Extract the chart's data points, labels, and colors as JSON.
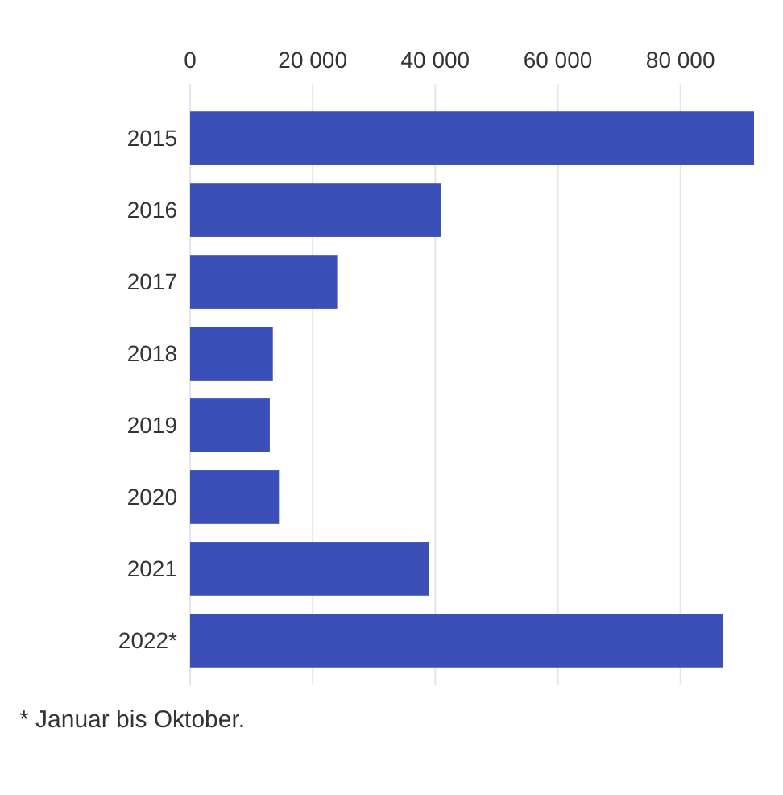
{
  "chart_data": {
    "type": "bar",
    "orientation": "horizontal",
    "categories": [
      "2015",
      "2016",
      "2017",
      "2018",
      "2019",
      "2020",
      "2021",
      "2022*"
    ],
    "values": [
      92000,
      41000,
      24000,
      13500,
      13000,
      14500,
      39000,
      87000
    ],
    "color": "#3b4fb8",
    "xlim": [
      0,
      92000
    ],
    "xticks": [
      {
        "value": 0,
        "label": "0"
      },
      {
        "value": 20000,
        "label": "20 000"
      },
      {
        "value": 40000,
        "label": "40 000"
      },
      {
        "value": 60000,
        "label": "60 000"
      },
      {
        "value": 80000,
        "label": "80 000"
      }
    ],
    "grid": "x",
    "annotations": [
      "* Januar bis Oktober."
    ]
  }
}
